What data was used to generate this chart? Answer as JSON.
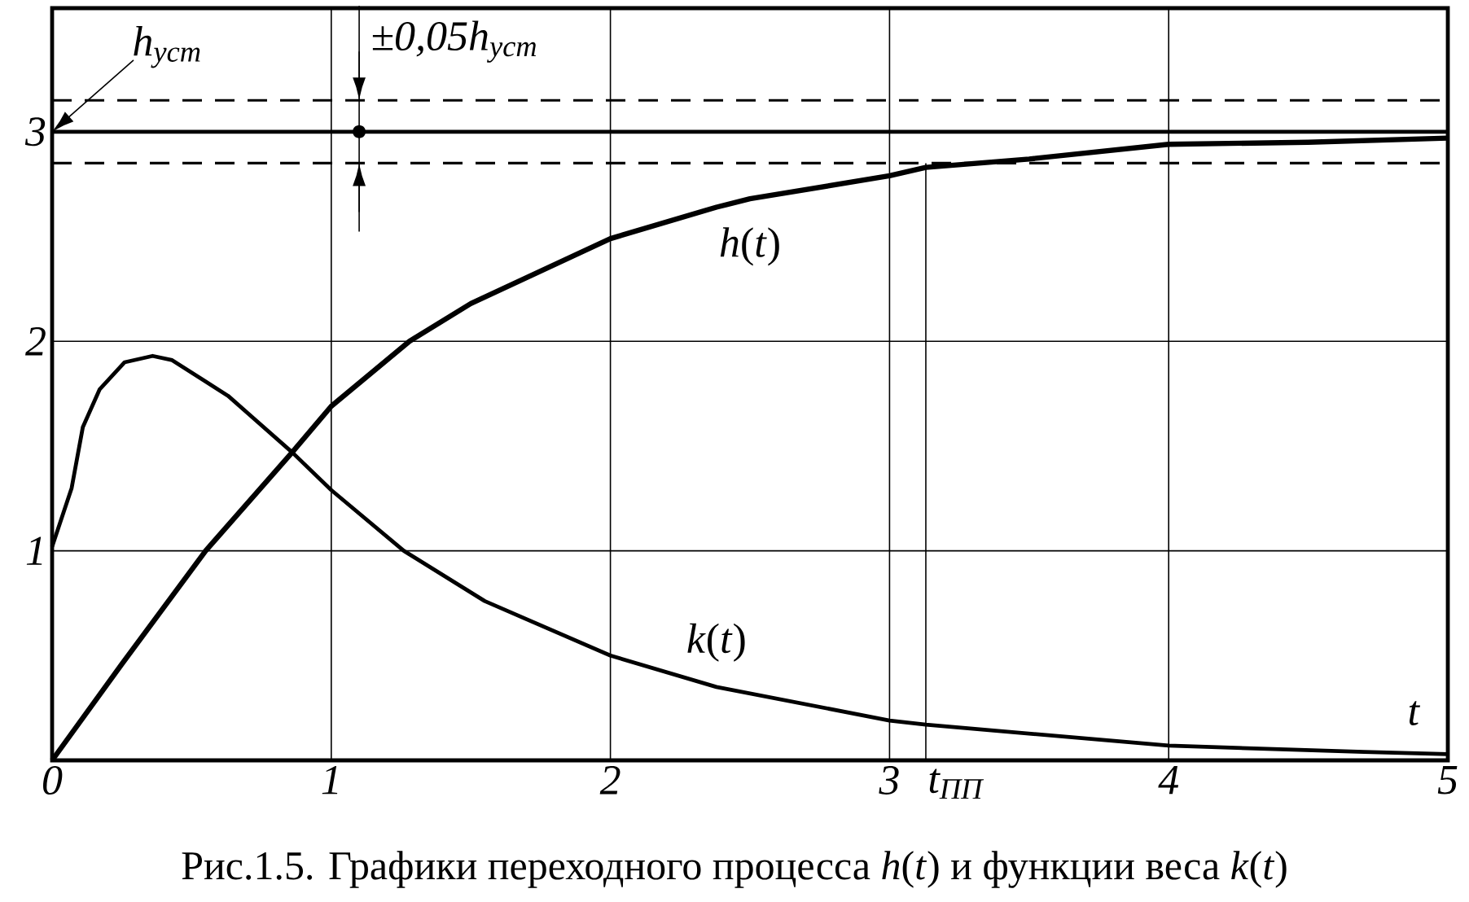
{
  "chart_data": {
    "type": "line",
    "xlim": [
      0,
      5
    ],
    "ylim": [
      0,
      3.59
    ],
    "xticks": [
      0,
      1,
      2,
      3,
      4,
      5
    ],
    "yticks": [
      1,
      2,
      3
    ],
    "grid": true,
    "legend": false,
    "xlabel": "t",
    "series": [
      {
        "name": "*h*(*t*)",
        "color": "#000000",
        "x": [
          0,
          0.25,
          0.55,
          0.86,
          1.0,
          1.28,
          1.5,
          2.0,
          2.38,
          2.5,
          3.0,
          3.13,
          3.5,
          4.0,
          4.5,
          5.0
        ],
        "values": [
          0,
          0.46,
          1.0,
          1.47,
          1.69,
          2.0,
          2.18,
          2.49,
          2.64,
          2.68,
          2.79,
          2.83,
          2.87,
          2.94,
          2.95,
          2.97
        ]
      },
      {
        "name": "*k*(*t*)",
        "color": "#000000",
        "x": [
          0,
          0.07,
          0.11,
          0.17,
          0.26,
          0.36,
          0.43,
          0.63,
          0.86,
          1.0,
          1.26,
          1.55,
          2.0,
          2.38,
          3.0,
          3.13,
          4.0,
          4.7,
          5.0
        ],
        "values": [
          1.02,
          1.3,
          1.59,
          1.77,
          1.9,
          1.93,
          1.91,
          1.74,
          1.47,
          1.29,
          1.0,
          0.76,
          0.5,
          0.35,
          0.19,
          0.17,
          0.07,
          0.04,
          0.03
        ]
      }
    ],
    "ref_lines": [
      {
        "axis": "y",
        "value": 3,
        "label": "h$_{уст}$",
        "line_style": "solid"
      },
      {
        "axis": "y",
        "value": 3.15,
        "line_style": "dashed"
      },
      {
        "axis": "y",
        "value": 2.85,
        "line_style": "dashed"
      },
      {
        "axis": "x",
        "value": 3.13,
        "label": "t$_{ПП}$",
        "line_style": "solid"
      }
    ],
    "annotations": [
      {
        "text": "±0,05h$_{уст}$",
        "x": 1.1,
        "y": 3
      },
      "Рис.1.5. Графики переходного процесса *h*(*t*) и функции веса *k*(*t*)"
    ]
  }
}
